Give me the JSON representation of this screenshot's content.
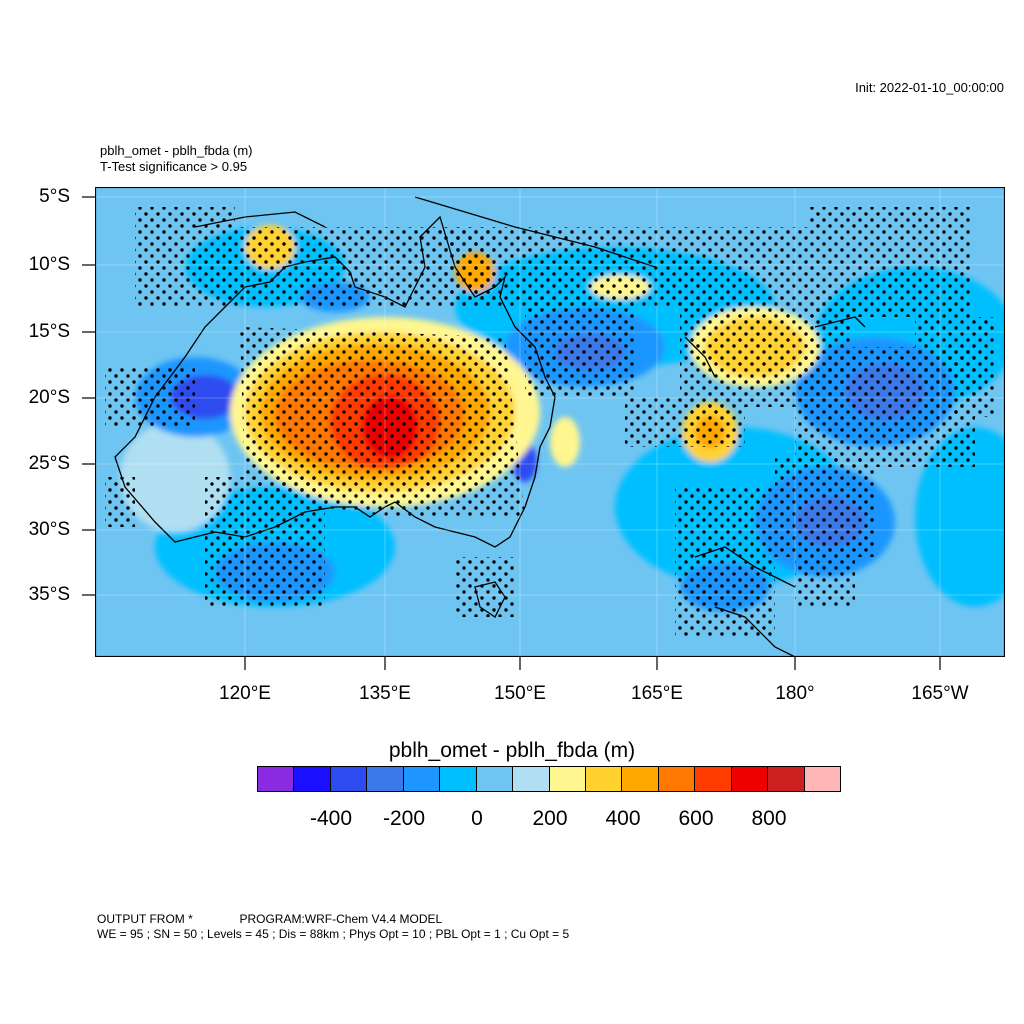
{
  "header": {
    "init": "Init: 2022-01-10_00:00:00",
    "title": "pblh_omet - pblh_fbda   (m)",
    "subtitle": "T-Test significance > 0.95"
  },
  "axes": {
    "lat_labels": [
      "5°S",
      "10°S",
      "15°S",
      "20°S",
      "25°S",
      "30°S",
      "35°S"
    ],
    "lon_labels": [
      "120°E",
      "135°E",
      "150°E",
      "165°E",
      "180°",
      "165°W"
    ]
  },
  "colorbar": {
    "title": "pblh_omet - pblh_fbda  (m)",
    "colors": [
      "#8a2be2",
      "#1a0fff",
      "#2e4bef",
      "#3b78e8",
      "#1e96ff",
      "#00bfff",
      "#6ec5f2",
      "#b0dff2",
      "#fff68f",
      "#ffd230",
      "#ffa800",
      "#ff7800",
      "#ff3b00",
      "#ee0000",
      "#cd2020",
      "#ffb6b6"
    ],
    "labels": [
      "-400",
      "-200",
      "0",
      "200",
      "400",
      "600",
      "800"
    ]
  },
  "footer": {
    "line1_a": "OUTPUT FROM *",
    "line1_b": "PROGRAM:WRF-Chem V4.4 MODEL",
    "line2": "WE = 95 ; SN = 50 ; Levels = 45 ; Dis = 88km ; Phys Opt = 10 ; PBL Opt = 1 ; Cu Opt = 5"
  }
}
